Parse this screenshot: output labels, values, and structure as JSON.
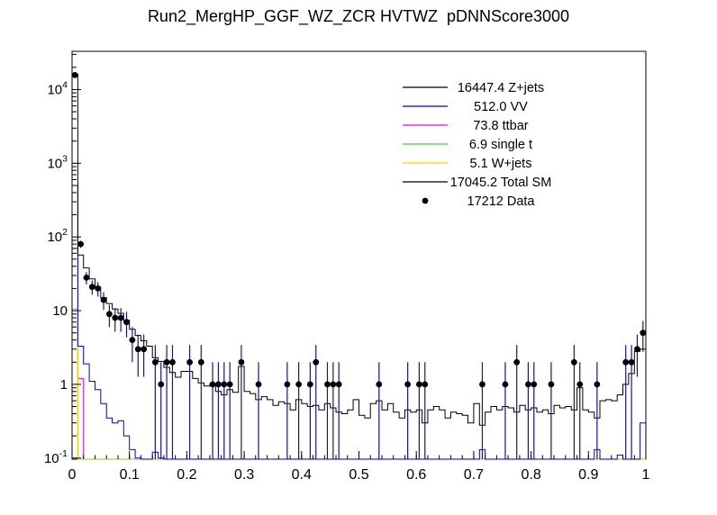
{
  "title": "Run2_MergHP_GGF_WZ_ZCR HVTWZ  pDNNScore3000",
  "chart_data": {
    "type": "bar",
    "subtype": "step-histogram-log-y",
    "title": "Run2_MergHP_GGF_WZ_ZCR HVTWZ  pDNNScore3000",
    "xlabel": "",
    "ylabel": "",
    "x_range": [
      0,
      1
    ],
    "y_range": [
      0.0966,
      33000
    ],
    "y_scale": "log",
    "grid": "off",
    "bin_width": 0.01,
    "n_bins": 100,
    "x_ticks": [
      {
        "v": 0.0,
        "label": "0"
      },
      {
        "v": 0.1,
        "label": "0.1"
      },
      {
        "v": 0.2,
        "label": "0.2"
      },
      {
        "v": 0.3,
        "label": "0.3"
      },
      {
        "v": 0.4,
        "label": "0.4"
      },
      {
        "v": 0.5,
        "label": "0.5"
      },
      {
        "v": 0.6,
        "label": "0.6"
      },
      {
        "v": 0.7,
        "label": "0.7"
      },
      {
        "v": 0.8,
        "label": "0.8"
      },
      {
        "v": 0.9,
        "label": "0.9"
      },
      {
        "v": 1.0,
        "label": "1"
      }
    ],
    "y_ticks": [
      {
        "v": 0.1,
        "base": "10",
        "exp": "-1"
      },
      {
        "v": 1,
        "base": "1",
        "exp": ""
      },
      {
        "v": 10,
        "base": "10",
        "exp": ""
      },
      {
        "v": 100,
        "base": "10",
        "exp": "2"
      },
      {
        "v": 1000,
        "base": "10",
        "exp": "3"
      },
      {
        "v": 10000,
        "base": "10",
        "exp": "4"
      }
    ],
    "legend_position": "upper-right-inside",
    "series": [
      {
        "name": "Z+jets",
        "legend": "16447.4 Z+jets",
        "color": "#000000",
        "bins_ref": "total"
      },
      {
        "name": "VV",
        "legend": "512.0 VV",
        "color": "#0000f0",
        "bins_ref": "vv"
      },
      {
        "name": "ttbar",
        "legend": "73.8 ttbar",
        "color": "#f000f0",
        "bins_ref": "ttbar"
      },
      {
        "name": "single t",
        "legend": "6.9 single t",
        "color": "#4cc24c",
        "bins_ref": "singlet"
      },
      {
        "name": "W+jets",
        "legend": "5.1 W+jets",
        "color": "#ffcc00",
        "bins_ref": "wjets"
      },
      {
        "name": "Total SM",
        "legend": "17045.2 Total SM",
        "color": "#000000",
        "bins_ref": "total"
      }
    ],
    "bins": {
      "total": {
        "values": [
          16000,
          57,
          38,
          27,
          21,
          15,
          12.5,
          10.5,
          9.2,
          7.4,
          5.6,
          4.6,
          3.9,
          3.3,
          2.3,
          2.05,
          1.7,
          1.45,
          1.25,
          1.5,
          1.5,
          1.2,
          1.05,
          0.95,
          1.0,
          0.8,
          0.72,
          0.85,
          0.78,
          1.75,
          0.8,
          0.75,
          0.62,
          0.68,
          0.62,
          0.52,
          0.58,
          0.55,
          0.45,
          0.62,
          0.55,
          0.5,
          0.52,
          0.45,
          0.55,
          0.48,
          0.42,
          0.4,
          0.45,
          0.62,
          0.38,
          0.35,
          0.55,
          0.6,
          0.45,
          0.55,
          0.42,
          0.35,
          0.45,
          0.42,
          0.45,
          0.3,
          0.45,
          0.5,
          0.45,
          0.35,
          0.42,
          0.4,
          0.38,
          0.3,
          0.55,
          0.28,
          0.42,
          0.5,
          0.45,
          0.5,
          0.48,
          0.42,
          0.52,
          0.45,
          0.48,
          0.42,
          0.45,
          0.4,
          0.52,
          0.48,
          0.5,
          0.45,
          0.9,
          0.45,
          0.42,
          0.35,
          0.6,
          0.62,
          0.6,
          0.72,
          1.0,
          1.4,
          2.8,
          3.0
        ],
        "fill": 0.04,
        "length": 100,
        "overrides": {}
      },
      "vv": {
        "values": [
          500,
          3.3,
          1.9,
          1.1,
          0.85,
          0.55,
          0.35,
          0.3,
          0.32,
          0.2,
          0.13,
          0.1
        ],
        "fill": 0.04,
        "length": 100,
        "overrides": {
          "15": 0.12,
          "16": 0.1,
          "72": 0.13,
          "92": 0.13,
          "96": 0.11,
          "100": 0.3
        }
      },
      "ttbar": {
        "values": [
          70,
          1.2
        ],
        "fill": 0.04,
        "length": 100,
        "overrides": {}
      },
      "singlet": {
        "values": [
          10.5
        ],
        "fill": 0.04,
        "length": 100,
        "overrides": {}
      },
      "wjets": {
        "values": [
          5
        ],
        "fill": 0.0975,
        "length": 100,
        "overrides": {}
      }
    },
    "data_points": {
      "legend": "17212 Data",
      "marker": "filled-circle",
      "marker_color": "#000000",
      "errbar_color": "#15158c",
      "points": [
        [
          0.005,
          15700
        ],
        [
          0.015,
          80
        ],
        [
          0.025,
          28
        ],
        [
          0.035,
          21
        ],
        [
          0.045,
          20
        ],
        [
          0.055,
          14
        ],
        [
          0.065,
          9
        ],
        [
          0.075,
          8
        ],
        [
          0.085,
          8
        ],
        [
          0.095,
          7
        ],
        [
          0.105,
          4
        ],
        [
          0.115,
          3
        ],
        [
          0.125,
          3
        ],
        [
          0.145,
          2
        ],
        [
          0.155,
          1
        ],
        [
          0.165,
          2
        ],
        [
          0.175,
          2
        ],
        [
          0.205,
          2
        ],
        [
          0.225,
          2
        ],
        [
          0.245,
          1
        ],
        [
          0.255,
          1
        ],
        [
          0.265,
          1
        ],
        [
          0.275,
          1
        ],
        [
          0.295,
          2
        ],
        [
          0.325,
          1
        ],
        [
          0.375,
          1
        ],
        [
          0.395,
          1
        ],
        [
          0.415,
          1
        ],
        [
          0.425,
          2
        ],
        [
          0.445,
          1
        ],
        [
          0.455,
          1
        ],
        [
          0.465,
          1
        ],
        [
          0.535,
          1
        ],
        [
          0.585,
          1
        ],
        [
          0.605,
          1
        ],
        [
          0.615,
          1
        ],
        [
          0.715,
          1
        ],
        [
          0.755,
          1
        ],
        [
          0.775,
          2
        ],
        [
          0.795,
          1
        ],
        [
          0.805,
          1
        ],
        [
          0.835,
          1
        ],
        [
          0.875,
          2
        ],
        [
          0.885,
          1
        ],
        [
          0.915,
          1
        ],
        [
          0.965,
          2
        ],
        [
          0.975,
          2
        ],
        [
          0.985,
          3
        ],
        [
          0.995,
          5
        ]
      ]
    },
    "frame_color": "#000000",
    "background_color": "#ffffff"
  }
}
